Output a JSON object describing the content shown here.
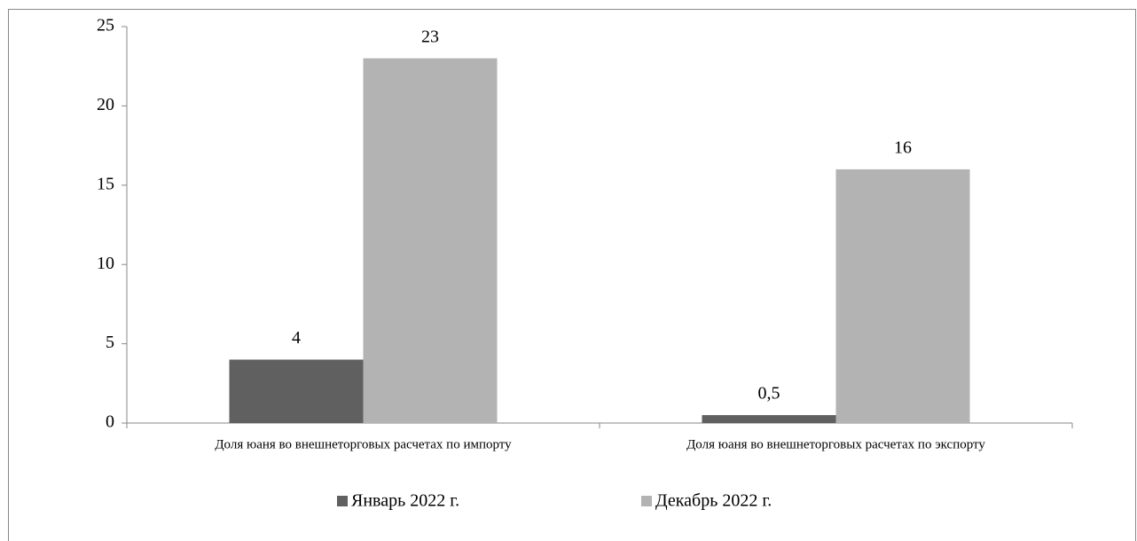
{
  "chart_data": {
    "type": "bar",
    "categories": [
      "Доля юаня во внешнеторговых расчетах по импорту",
      "Доля юаня во внешнеторговых расчетах по экспорту"
    ],
    "series": [
      {
        "name": "Январь 2022 г.",
        "color": "#606060",
        "values": [
          4,
          0.5
        ],
        "value_labels": [
          "4",
          "0,5"
        ]
      },
      {
        "name": "Декабрь 2022 г.",
        "color": "#b3b3b3",
        "values": [
          23,
          16
        ]
      }
    ],
    "ylim": [
      0,
      25
    ],
    "yticks": [
      0,
      5,
      10,
      15,
      20,
      25
    ],
    "grid": false,
    "legend": "bottom"
  }
}
